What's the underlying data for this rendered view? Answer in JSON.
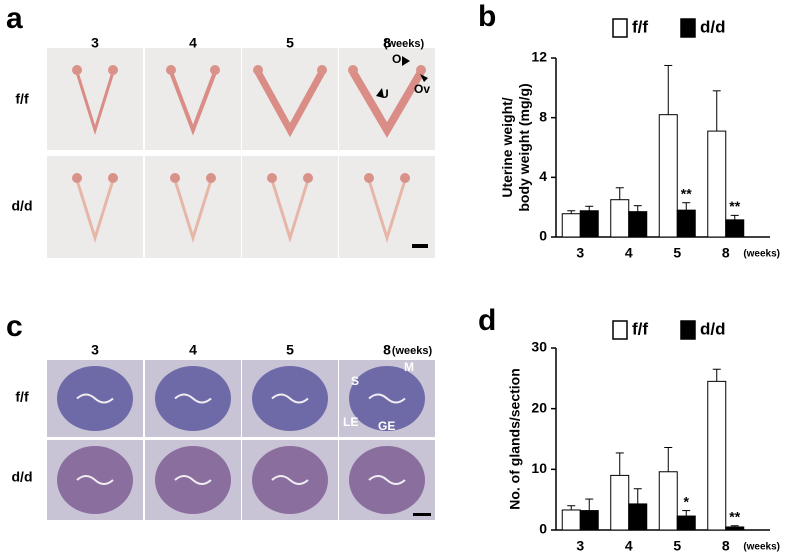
{
  "panels": {
    "a": {
      "letter": "a",
      "columns": [
        "3",
        "4",
        "5",
        "8"
      ],
      "unit": "(weeks)",
      "rows": [
        "f/f",
        "d/d"
      ],
      "annotations": [
        "O",
        "Ov",
        "U"
      ]
    },
    "c": {
      "letter": "c",
      "columns": [
        "3",
        "4",
        "5",
        "8"
      ],
      "unit": "(weeks)",
      "rows": [
        "f/f",
        "d/d"
      ],
      "annotations": [
        "S",
        "M",
        "LE",
        "GE"
      ]
    }
  },
  "chart_data": [
    {
      "type": "bar",
      "panel": "b",
      "y_label": "Uterine weight/ body weight (mg/g)",
      "x_unit": "(weeks)",
      "categories": [
        "3",
        "4",
        "5",
        "8"
      ],
      "series": [
        {
          "name": "f/f",
          "color": "#ffffff",
          "values": [
            1.56,
            2.5,
            8.2,
            7.1
          ],
          "errors": [
            0.2,
            0.8,
            3.3,
            2.7
          ]
        },
        {
          "name": "d/d",
          "color": "#000000",
          "values": [
            1.76,
            1.7,
            1.8,
            1.15
          ],
          "errors": [
            0.3,
            0.4,
            0.5,
            0.3
          ]
        }
      ],
      "significance": [
        null,
        null,
        "**",
        "**"
      ],
      "ylim": [
        0,
        12
      ],
      "yticks": [
        0,
        4,
        8,
        12
      ]
    },
    {
      "type": "bar",
      "panel": "d",
      "y_label": "No. of glands/section",
      "x_unit": "(weeks)",
      "categories": [
        "3",
        "4",
        "5",
        "8"
      ],
      "series": [
        {
          "name": "f/f",
          "color": "#ffffff",
          "values": [
            3.3,
            9,
            9.6,
            24.5
          ],
          "errors": [
            0.7,
            3.7,
            4,
            2
          ]
        },
        {
          "name": "d/d",
          "color": "#000000",
          "values": [
            3.2,
            4.3,
            2.3,
            0.5
          ],
          "errors": [
            1.9,
            2.5,
            0.9,
            0.2
          ]
        }
      ],
      "significance": [
        null,
        null,
        "*",
        "**"
      ],
      "ylim": [
        0,
        30
      ],
      "yticks": [
        0,
        10,
        20,
        30
      ]
    }
  ]
}
